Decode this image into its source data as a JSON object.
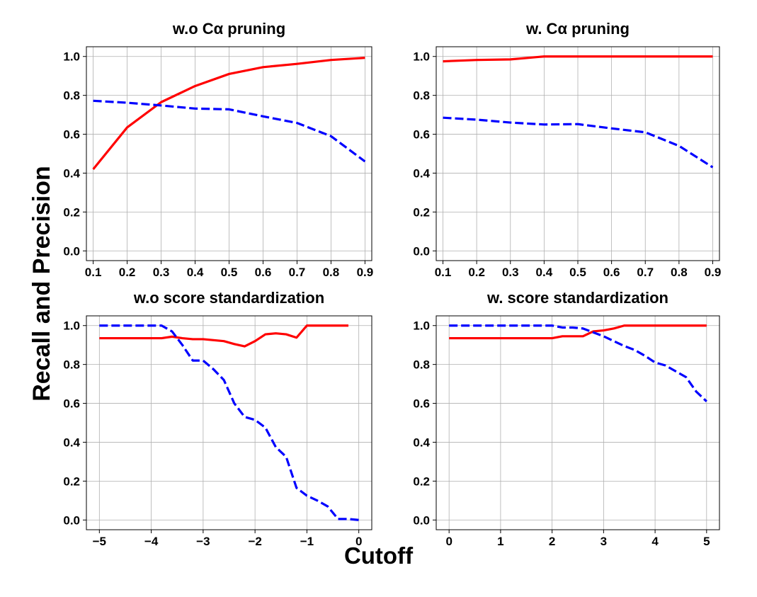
{
  "figure": {
    "ylabel": "Recall and Precision",
    "xlabel": "Cutoff"
  },
  "chart_data": [
    {
      "type": "line",
      "title": "w.o Cα pruning",
      "xlim": [
        0.08,
        0.92
      ],
      "ylim": [
        -0.05,
        1.05
      ],
      "xticks": [
        0.1,
        0.2,
        0.3,
        0.4,
        0.5,
        0.6,
        0.7,
        0.8,
        0.9
      ],
      "xtick_labels": [
        "0.1",
        "0.2",
        "0.3",
        "0.4",
        "0.5",
        "0.6",
        "0.7",
        "0.8",
        "0.9"
      ],
      "yticks": [
        0.0,
        0.2,
        0.4,
        0.6,
        0.8,
        1.0
      ],
      "ytick_labels": [
        "0.0",
        "0.2",
        "0.4",
        "0.6",
        "0.8",
        "1.0"
      ],
      "grid": true,
      "series": [
        {
          "color": "#ff0000",
          "dash": "solid",
          "x": [
            0.1,
            0.2,
            0.3,
            0.4,
            0.5,
            0.6,
            0.7,
            0.8,
            0.9
          ],
          "y": [
            0.42,
            0.635,
            0.765,
            0.848,
            0.91,
            0.945,
            0.962,
            0.982,
            0.993
          ]
        },
        {
          "color": "#0000ff",
          "dash": "dashed",
          "x": [
            0.1,
            0.2,
            0.3,
            0.4,
            0.5,
            0.6,
            0.7,
            0.8,
            0.9
          ],
          "y": [
            0.772,
            0.762,
            0.748,
            0.732,
            0.728,
            0.692,
            0.658,
            0.59,
            0.46
          ]
        }
      ]
    },
    {
      "type": "line",
      "title": "w. Cα pruning",
      "xlim": [
        0.08,
        0.92
      ],
      "ylim": [
        -0.05,
        1.05
      ],
      "xticks": [
        0.1,
        0.2,
        0.3,
        0.4,
        0.5,
        0.6,
        0.7,
        0.8,
        0.9
      ],
      "xtick_labels": [
        "0.1",
        "0.2",
        "0.3",
        "0.4",
        "0.5",
        "0.6",
        "0.7",
        "0.8",
        "0.9"
      ],
      "yticks": [
        0.0,
        0.2,
        0.4,
        0.6,
        0.8,
        1.0
      ],
      "ytick_labels": [
        "0.0",
        "0.2",
        "0.4",
        "0.6",
        "0.8",
        "1.0"
      ],
      "grid": true,
      "series": [
        {
          "color": "#ff0000",
          "dash": "solid",
          "x": [
            0.1,
            0.2,
            0.3,
            0.4,
            0.5,
            0.6,
            0.7,
            0.8,
            0.9
          ],
          "y": [
            0.975,
            0.982,
            0.985,
            1.0,
            1.0,
            1.0,
            1.0,
            1.0,
            1.0
          ]
        },
        {
          "color": "#0000ff",
          "dash": "dashed",
          "x": [
            0.1,
            0.2,
            0.3,
            0.4,
            0.5,
            0.6,
            0.7,
            0.8,
            0.9
          ],
          "y": [
            0.685,
            0.675,
            0.66,
            0.65,
            0.652,
            0.63,
            0.61,
            0.54,
            0.43
          ]
        }
      ]
    },
    {
      "type": "line",
      "title": "w.o score standardization",
      "xlim": [
        -5.25,
        0.25
      ],
      "ylim": [
        -0.05,
        1.05
      ],
      "xticks": [
        -5,
        -4,
        -3,
        -2,
        -1,
        0
      ],
      "xtick_labels": [
        "−5",
        "−4",
        "−3",
        "−2",
        "−1",
        "0"
      ],
      "yticks": [
        0.0,
        0.2,
        0.4,
        0.6,
        0.8,
        1.0
      ],
      "ytick_labels": [
        "0.0",
        "0.2",
        "0.4",
        "0.6",
        "0.8",
        "1.0"
      ],
      "grid": true,
      "series": [
        {
          "color": "#ff0000",
          "dash": "solid",
          "x": [
            -5.0,
            -4.8,
            -4.6,
            -4.4,
            -4.2,
            -4.0,
            -3.8,
            -3.6,
            -3.4,
            -3.2,
            -3.0,
            -2.8,
            -2.6,
            -2.4,
            -2.2,
            -2.0,
            -1.8,
            -1.6,
            -1.4,
            -1.2,
            -1.0,
            -0.8,
            -0.6,
            -0.4,
            -0.2
          ],
          "y": [
            0.935,
            0.935,
            0.935,
            0.935,
            0.935,
            0.935,
            0.935,
            0.943,
            0.935,
            0.93,
            0.93,
            0.925,
            0.92,
            0.905,
            0.893,
            0.92,
            0.955,
            0.96,
            0.955,
            0.938,
            1.0,
            1.0,
            1.0,
            1.0,
            1.0
          ]
        },
        {
          "color": "#0000ff",
          "dash": "dashed",
          "x": [
            -5.0,
            -4.8,
            -4.6,
            -4.4,
            -4.2,
            -4.0,
            -3.8,
            -3.6,
            -3.4,
            -3.2,
            -3.0,
            -2.8,
            -2.6,
            -2.4,
            -2.2,
            -2.0,
            -1.8,
            -1.6,
            -1.4,
            -1.2,
            -1.0,
            -0.8,
            -0.6,
            -0.4,
            -0.2,
            0.0
          ],
          "y": [
            1.0,
            1.0,
            1.0,
            1.0,
            1.0,
            1.0,
            1.0,
            0.97,
            0.9,
            0.82,
            0.82,
            0.775,
            0.72,
            0.6,
            0.53,
            0.515,
            0.475,
            0.375,
            0.325,
            0.165,
            0.125,
            0.1,
            0.07,
            0.005,
            0.005,
            0.0
          ]
        }
      ]
    },
    {
      "type": "line",
      "title": "w. score standardization",
      "xlim": [
        -0.25,
        5.25
      ],
      "ylim": [
        -0.05,
        1.05
      ],
      "xticks": [
        0,
        1,
        2,
        3,
        4,
        5
      ],
      "xtick_labels": [
        "0",
        "1",
        "2",
        "3",
        "4",
        "5"
      ],
      "yticks": [
        0.0,
        0.2,
        0.4,
        0.6,
        0.8,
        1.0
      ],
      "ytick_labels": [
        "0.0",
        "0.2",
        "0.4",
        "0.6",
        "0.8",
        "1.0"
      ],
      "grid": true,
      "series": [
        {
          "color": "#ff0000",
          "dash": "solid",
          "x": [
            0.0,
            0.2,
            0.4,
            0.6,
            0.8,
            1.0,
            1.2,
            1.4,
            1.6,
            1.8,
            2.0,
            2.2,
            2.4,
            2.6,
            2.8,
            3.0,
            3.2,
            3.4,
            3.6,
            3.8,
            4.0,
            4.2,
            4.4,
            4.6,
            4.8,
            5.0
          ],
          "y": [
            0.935,
            0.935,
            0.935,
            0.935,
            0.935,
            0.935,
            0.935,
            0.935,
            0.935,
            0.935,
            0.935,
            0.945,
            0.945,
            0.945,
            0.97,
            0.975,
            0.985,
            1.0,
            1.0,
            1.0,
            1.0,
            1.0,
            1.0,
            1.0,
            1.0,
            1.0
          ]
        },
        {
          "color": "#0000ff",
          "dash": "dashed",
          "x": [
            0.0,
            0.2,
            0.4,
            0.6,
            0.8,
            1.0,
            1.2,
            1.4,
            1.6,
            1.8,
            2.0,
            2.2,
            2.4,
            2.6,
            2.8,
            3.0,
            3.2,
            3.4,
            3.6,
            3.8,
            4.0,
            4.2,
            4.4,
            4.6,
            4.8,
            5.0
          ],
          "y": [
            1.0,
            1.0,
            1.0,
            1.0,
            1.0,
            1.0,
            1.0,
            1.0,
            1.0,
            1.0,
            1.0,
            0.99,
            0.99,
            0.985,
            0.965,
            0.945,
            0.92,
            0.895,
            0.875,
            0.845,
            0.81,
            0.795,
            0.765,
            0.735,
            0.66,
            0.61
          ]
        }
      ]
    }
  ]
}
